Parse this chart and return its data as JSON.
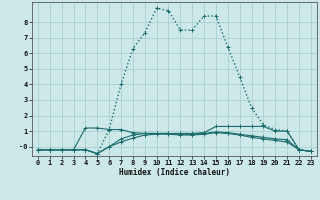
{
  "xlabel": "Humidex (Indice chaleur)",
  "bg_color": "#cce8e8",
  "grid_color": "#aacece",
  "line_color": "#1a6b6b",
  "x_ticks": [
    0,
    1,
    2,
    3,
    4,
    5,
    6,
    7,
    8,
    9,
    10,
    11,
    12,
    13,
    14,
    15,
    16,
    17,
    18,
    19,
    20,
    21,
    22,
    23
  ],
  "y_ticks": [
    0,
    1,
    2,
    3,
    4,
    5,
    6,
    7,
    8
  ],
  "y_ticklabels": [
    "-0",
    "1",
    "2",
    "3",
    "4",
    "5",
    "6",
    "7",
    "8"
  ],
  "ylim": [
    -0.6,
    9.3
  ],
  "xlim": [
    -0.5,
    23.5
  ],
  "series": [
    {
      "x": [
        0,
        1,
        2,
        3,
        4,
        5,
        6,
        7,
        8,
        9,
        10,
        11,
        12,
        13,
        14,
        15,
        16,
        17,
        18,
        19,
        20,
        21,
        22,
        23
      ],
      "y": [
        -0.2,
        -0.2,
        -0.2,
        -0.2,
        -0.2,
        -0.45,
        1.1,
        4.0,
        6.3,
        7.3,
        8.9,
        8.75,
        7.5,
        7.5,
        8.4,
        8.4,
        6.4,
        4.5,
        2.5,
        1.4,
        1.1,
        1.0,
        -0.2,
        -0.3
      ],
      "linestyle": "dotted",
      "linewidth": 1.0
    },
    {
      "x": [
        0,
        1,
        2,
        3,
        4,
        5,
        6,
        7,
        8,
        9,
        10,
        11,
        12,
        13,
        14,
        15,
        16,
        17,
        18,
        19,
        20,
        21,
        22,
        23
      ],
      "y": [
        -0.2,
        -0.2,
        -0.2,
        -0.2,
        1.2,
        1.2,
        1.1,
        1.1,
        0.9,
        0.85,
        0.85,
        0.85,
        0.85,
        0.85,
        0.9,
        1.3,
        1.3,
        1.3,
        1.3,
        1.3,
        1.0,
        1.0,
        -0.2,
        -0.3
      ],
      "linestyle": "solid",
      "linewidth": 0.8
    },
    {
      "x": [
        0,
        1,
        2,
        3,
        4,
        5,
        6,
        7,
        8,
        9,
        10,
        11,
        12,
        13,
        14,
        15,
        16,
        17,
        18,
        19,
        20,
        21,
        22,
        23
      ],
      "y": [
        -0.2,
        -0.2,
        -0.2,
        -0.2,
        -0.2,
        -0.45,
        0.0,
        0.5,
        0.75,
        0.85,
        0.85,
        0.85,
        0.8,
        0.8,
        0.85,
        0.95,
        0.9,
        0.8,
        0.7,
        0.6,
        0.5,
        0.45,
        -0.2,
        -0.3
      ],
      "linestyle": "solid",
      "linewidth": 0.8
    },
    {
      "x": [
        0,
        1,
        2,
        3,
        4,
        5,
        6,
        7,
        8,
        9,
        10,
        11,
        12,
        13,
        14,
        15,
        16,
        17,
        18,
        19,
        20,
        21,
        22,
        23
      ],
      "y": [
        -0.2,
        -0.2,
        -0.2,
        -0.2,
        -0.2,
        -0.45,
        0.0,
        0.3,
        0.55,
        0.75,
        0.8,
        0.8,
        0.75,
        0.75,
        0.8,
        0.9,
        0.85,
        0.75,
        0.6,
        0.5,
        0.4,
        0.3,
        -0.2,
        -0.3
      ],
      "linestyle": "solid",
      "linewidth": 0.8
    }
  ]
}
